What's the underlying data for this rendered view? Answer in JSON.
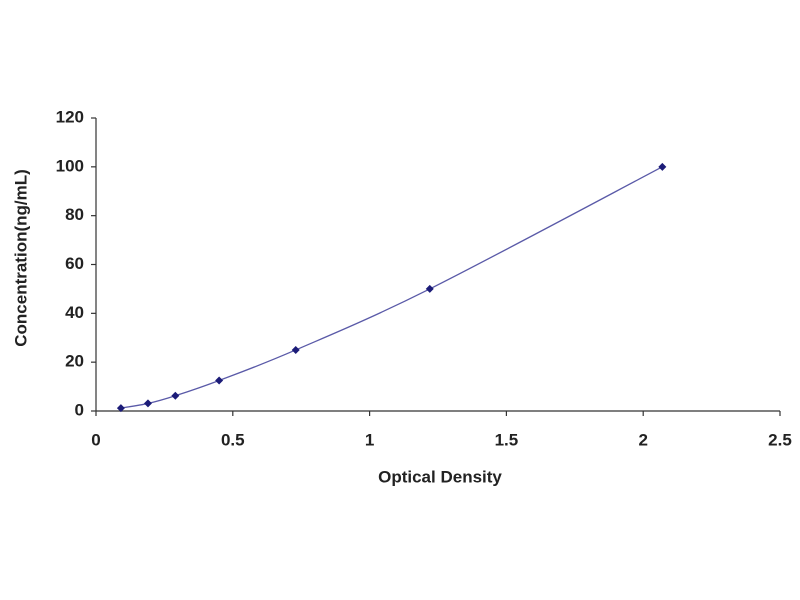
{
  "chart_data": {
    "type": "scatter",
    "x_label": "Optical Density",
    "y_label": "Concentration(ng/mL)",
    "series": [
      {
        "x": [
          0.091,
          0.19,
          0.29,
          0.45,
          0.73,
          1.22,
          2.07
        ],
        "values": [
          1.2,
          3.1,
          6.25,
          12.5,
          25,
          50,
          100
        ],
        "color": "#1c1c78",
        "line_color": "#5a5aa8"
      }
    ],
    "fit_line": true,
    "grid": false,
    "xlim": [
      0,
      2.5
    ],
    "xticks": [
      0,
      0.5,
      1,
      1.5,
      2,
      2.5
    ],
    "ylim": [
      0,
      120
    ],
    "yticks": [
      0,
      20,
      40,
      60,
      80,
      100,
      120
    ]
  }
}
